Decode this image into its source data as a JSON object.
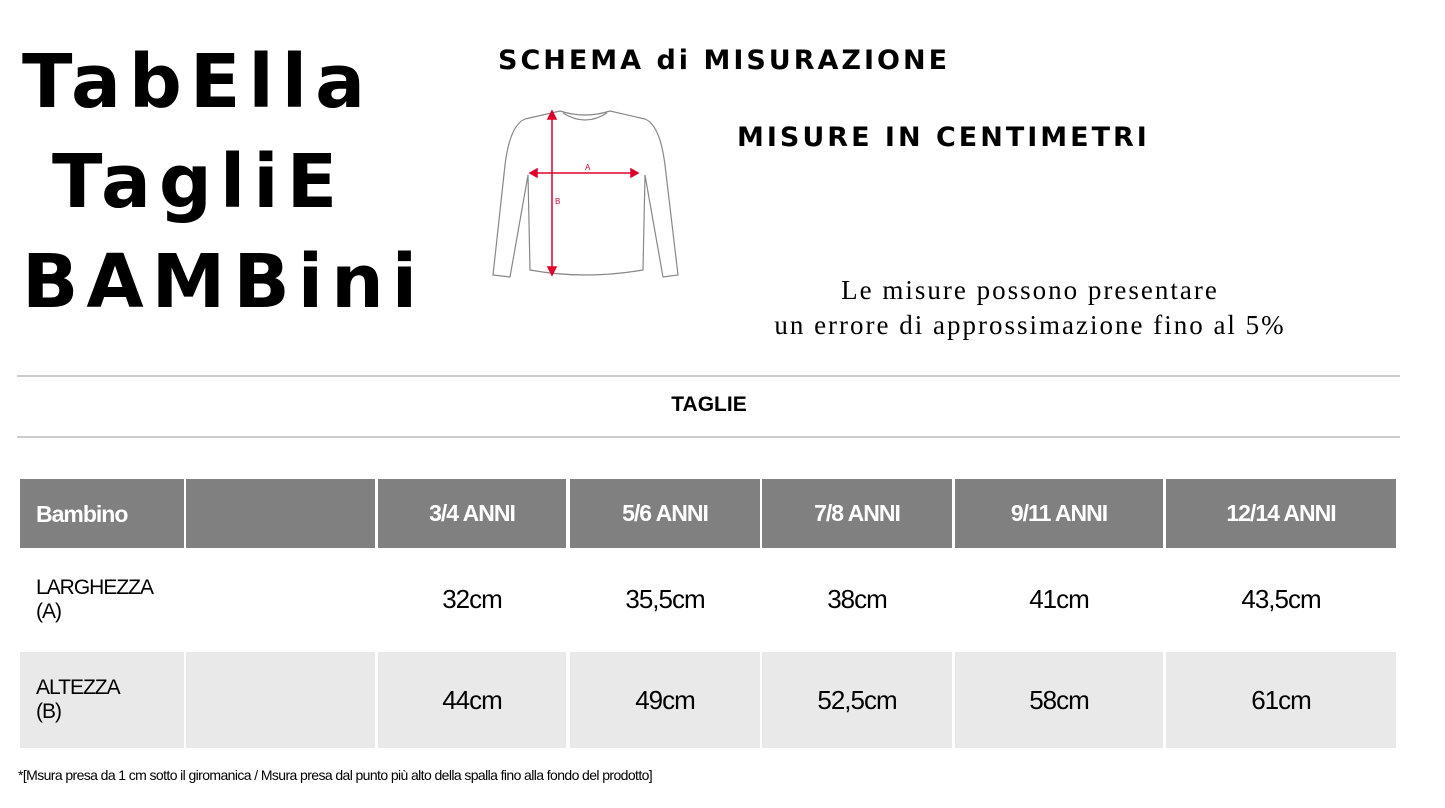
{
  "title_lines": [
    "TabElla",
    "TagliE",
    "BAMBini"
  ],
  "scheme_title": "SCHEMA di MISURAZIONE",
  "units_title": "MISURE IN CENTIMETRI",
  "diagram_labels": {
    "a": "A",
    "b": "B"
  },
  "accuracy_note": [
    "Le misure possono presentare",
    "un errore di approssimazione fino al 5%"
  ],
  "section_title": "TAGLIE",
  "table": {
    "headers": [
      "Bambino",
      "",
      "3/4 ANNI",
      "5/6 ANNI",
      "7/8 ANNI",
      "9/11 ANNI",
      "12/14 ANNI"
    ],
    "rows": [
      {
        "label": [
          "LARGHEZZA",
          "(A)"
        ],
        "values": [
          "32cm",
          "35,5cm",
          "38cm",
          "41cm",
          "43,5cm"
        ]
      },
      {
        "label": [
          "ALTEZZA",
          "(B)"
        ],
        "values": [
          "44cm",
          "49cm",
          "52,5cm",
          "58cm",
          "61cm"
        ]
      }
    ]
  },
  "footnote": "*[Msura presa da 1 cm sotto il giromanica / Msura presa dal punto più alto della spalla fino alla fondo del prodotto]",
  "colors": {
    "header_bg": "#808080",
    "alt_row_bg": "#e9e9e9",
    "arrow": "#e0002a"
  }
}
